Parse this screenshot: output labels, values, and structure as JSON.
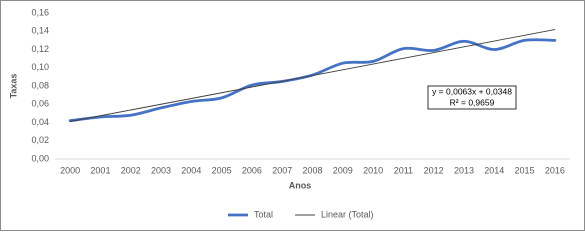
{
  "chart_data": {
    "type": "line",
    "x_label": "Anos",
    "y_label": "Taxas",
    "categories": [
      "2000",
      "2001",
      "2002",
      "2003",
      "2004",
      "2005",
      "2006",
      "2007",
      "2008",
      "2009",
      "2010",
      "2011",
      "2012",
      "2013",
      "2014",
      "2015",
      "2016"
    ],
    "series": [
      {
        "name": "Total",
        "color": "#4472c4",
        "smooth": true,
        "values": [
          0.042,
          0.046,
          0.048,
          0.056,
          0.063,
          0.067,
          0.081,
          0.085,
          0.092,
          0.105,
          0.107,
          0.121,
          0.119,
          0.129,
          0.12,
          0.13,
          0.13
        ]
      },
      {
        "name": "Linear (Total)",
        "color": "#404040",
        "smooth": false,
        "values": [
          0.0411,
          0.0474,
          0.0537,
          0.06,
          0.0663,
          0.0726,
          0.0789,
          0.0852,
          0.0915,
          0.0978,
          0.1041,
          0.1104,
          0.1167,
          0.123,
          0.1293,
          0.1356,
          0.1419
        ]
      }
    ],
    "ylim": [
      0,
      0.16
    ],
    "yticks": [
      {
        "value": 0,
        "label": "0,00"
      },
      {
        "value": 0.02,
        "label": "0,02"
      },
      {
        "value": 0.04,
        "label": "0,04"
      },
      {
        "value": 0.06,
        "label": "0,06"
      },
      {
        "value": 0.08,
        "label": "0,08"
      },
      {
        "value": 0.1,
        "label": "0,10"
      },
      {
        "value": 0.12,
        "label": "0,12"
      },
      {
        "value": 0.14,
        "label": "0,14"
      },
      {
        "value": 0.16,
        "label": "0,16"
      }
    ],
    "annotations": [
      "y = 0,0063x + 0,0348",
      "R² = 0,9659"
    ],
    "grid": false,
    "legend": "bottom"
  }
}
